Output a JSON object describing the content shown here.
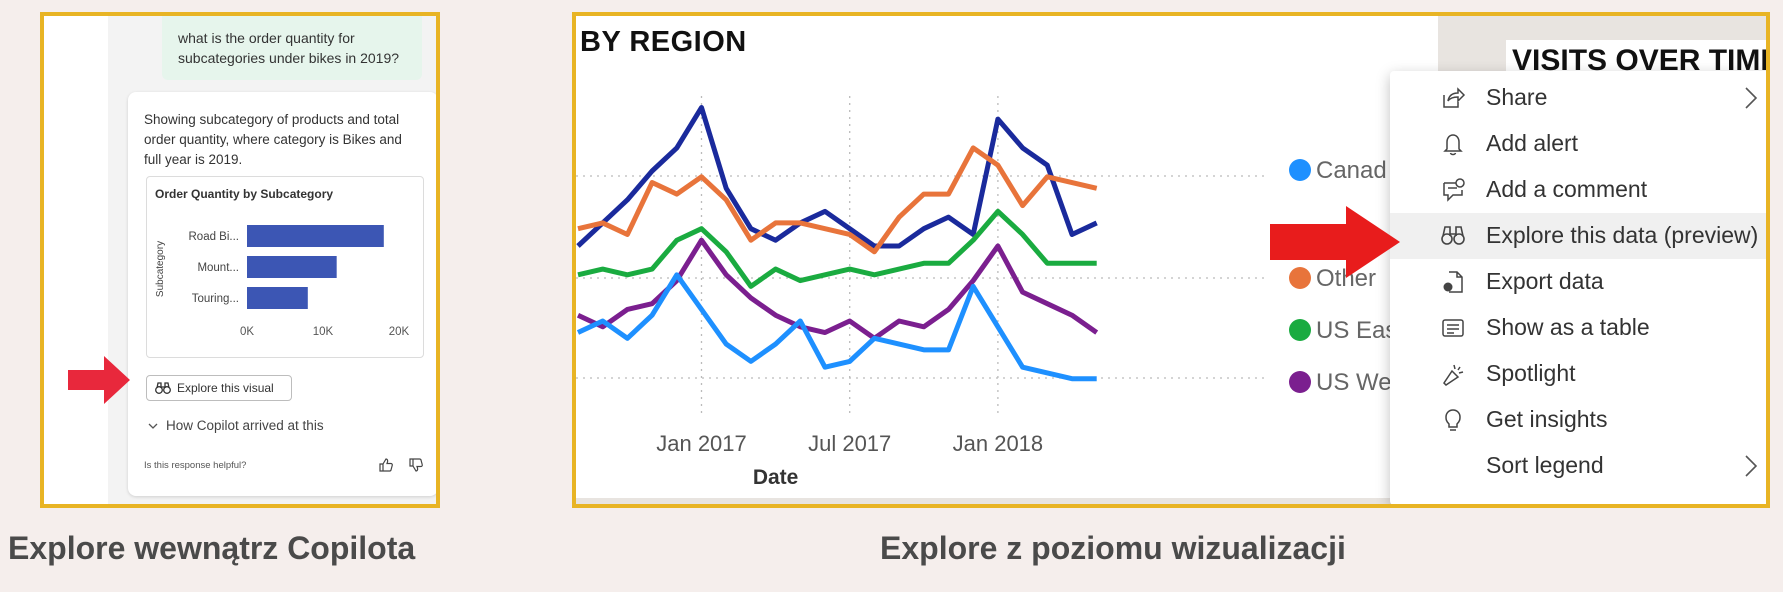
{
  "left_panel": {
    "user_question": "what is the order quantity for subcategories under bikes in 2019?",
    "response_text": "Showing subcategory of products and total order quantity, where category is Bikes and full year is 2019.",
    "mini_chart_title": "Order Quantity by Subcategory",
    "explore_visual_label": "Explore this visual",
    "how_copilot_label": "How Copilot arrived at this",
    "helpful_prompt": "Is this response helpful?",
    "caption": "Explore wewnątrz Copilota"
  },
  "right_panel": {
    "visual_title": "BY REGION",
    "visual_title_2": "VISITS OVER TIME",
    "caption": "Explore z poziomu wizualizacji",
    "menu_items": [
      {
        "label": "Share",
        "icon": "share-icon",
        "submenu": true
      },
      {
        "label": "Add alert",
        "icon": "bell-icon",
        "submenu": false
      },
      {
        "label": "Add a comment",
        "icon": "comment-icon",
        "submenu": false
      },
      {
        "label": "Explore this data (preview)",
        "icon": "binoculars-icon",
        "submenu": false,
        "highlighted": true
      },
      {
        "label": "Export data",
        "icon": "export-icon",
        "submenu": false
      },
      {
        "label": "Show as a table",
        "icon": "table-icon",
        "submenu": false
      },
      {
        "label": "Spotlight",
        "icon": "spotlight-icon",
        "submenu": false
      },
      {
        "label": "Get insights",
        "icon": "lightbulb-icon",
        "submenu": false
      },
      {
        "label": "Sort legend",
        "icon": "",
        "submenu": true
      }
    ]
  },
  "chart_data": [
    {
      "type": "bar",
      "title": "Order Quantity by Subcategory",
      "orientation": "horizontal",
      "ylabel": "Subcategory",
      "categories": [
        "Road Bi...",
        "Mount...",
        "Touring..."
      ],
      "values": [
        18000,
        11800,
        8000
      ],
      "xticks": [
        "0K",
        "10K",
        "20K"
      ],
      "xlim": [
        0,
        20000
      ],
      "color": "#3c56b4"
    },
    {
      "type": "line",
      "xlabel": "Date",
      "xticks": [
        "Jan 2017",
        "Jul 2017",
        "Jan 2018"
      ],
      "x": [
        "2016-08",
        "2016-09",
        "2016-10",
        "2016-11",
        "2016-12",
        "2017-01",
        "2017-02",
        "2017-03",
        "2017-04",
        "2017-05",
        "2017-06",
        "2017-07",
        "2017-08",
        "2017-09",
        "2017-10",
        "2017-11",
        "2017-12",
        "2018-01",
        "2018-02",
        "2018-03",
        "2018-04",
        "2018-05",
        "2018-06"
      ],
      "legend": [
        "Canad",
        "Other",
        "US Eas",
        "US We"
      ],
      "series": [
        {
          "color": "#1a2a9c",
          "values": [
            76,
            80,
            84,
            89,
            93,
            100,
            86,
            79,
            77,
            80,
            82,
            79,
            76,
            76,
            79,
            81,
            78,
            98,
            93,
            90,
            78,
            80,
            null
          ]
        },
        {
          "name": "Other",
          "color": "#e8743b",
          "values": [
            79,
            80,
            78,
            87,
            85,
            88,
            84,
            77,
            80,
            80,
            79,
            78,
            75,
            81,
            85,
            85,
            93,
            90,
            83,
            88,
            87,
            86,
            null
          ]
        },
        {
          "name": "US Eas",
          "color": "#1aab40",
          "values": [
            71,
            72,
            71,
            72,
            77,
            79,
            75,
            69,
            72,
            70,
            71,
            72,
            71,
            72,
            73,
            73,
            77,
            82,
            78,
            73,
            73,
            73,
            null
          ]
        },
        {
          "name": "US We",
          "color": "#7b1f8f",
          "values": [
            64,
            62,
            65,
            66,
            70,
            77,
            71,
            67,
            64,
            62,
            61,
            63,
            60,
            63,
            62,
            65,
            70,
            76,
            68,
            66,
            64,
            61,
            null
          ]
        },
        {
          "name": "Canad",
          "color": "#1e90ff",
          "values": [
            61,
            63,
            60,
            64,
            71,
            65,
            59,
            56,
            59,
            63,
            55,
            56,
            60,
            59,
            58,
            58,
            69,
            62,
            55,
            54,
            53,
            53,
            null
          ]
        }
      ]
    }
  ]
}
